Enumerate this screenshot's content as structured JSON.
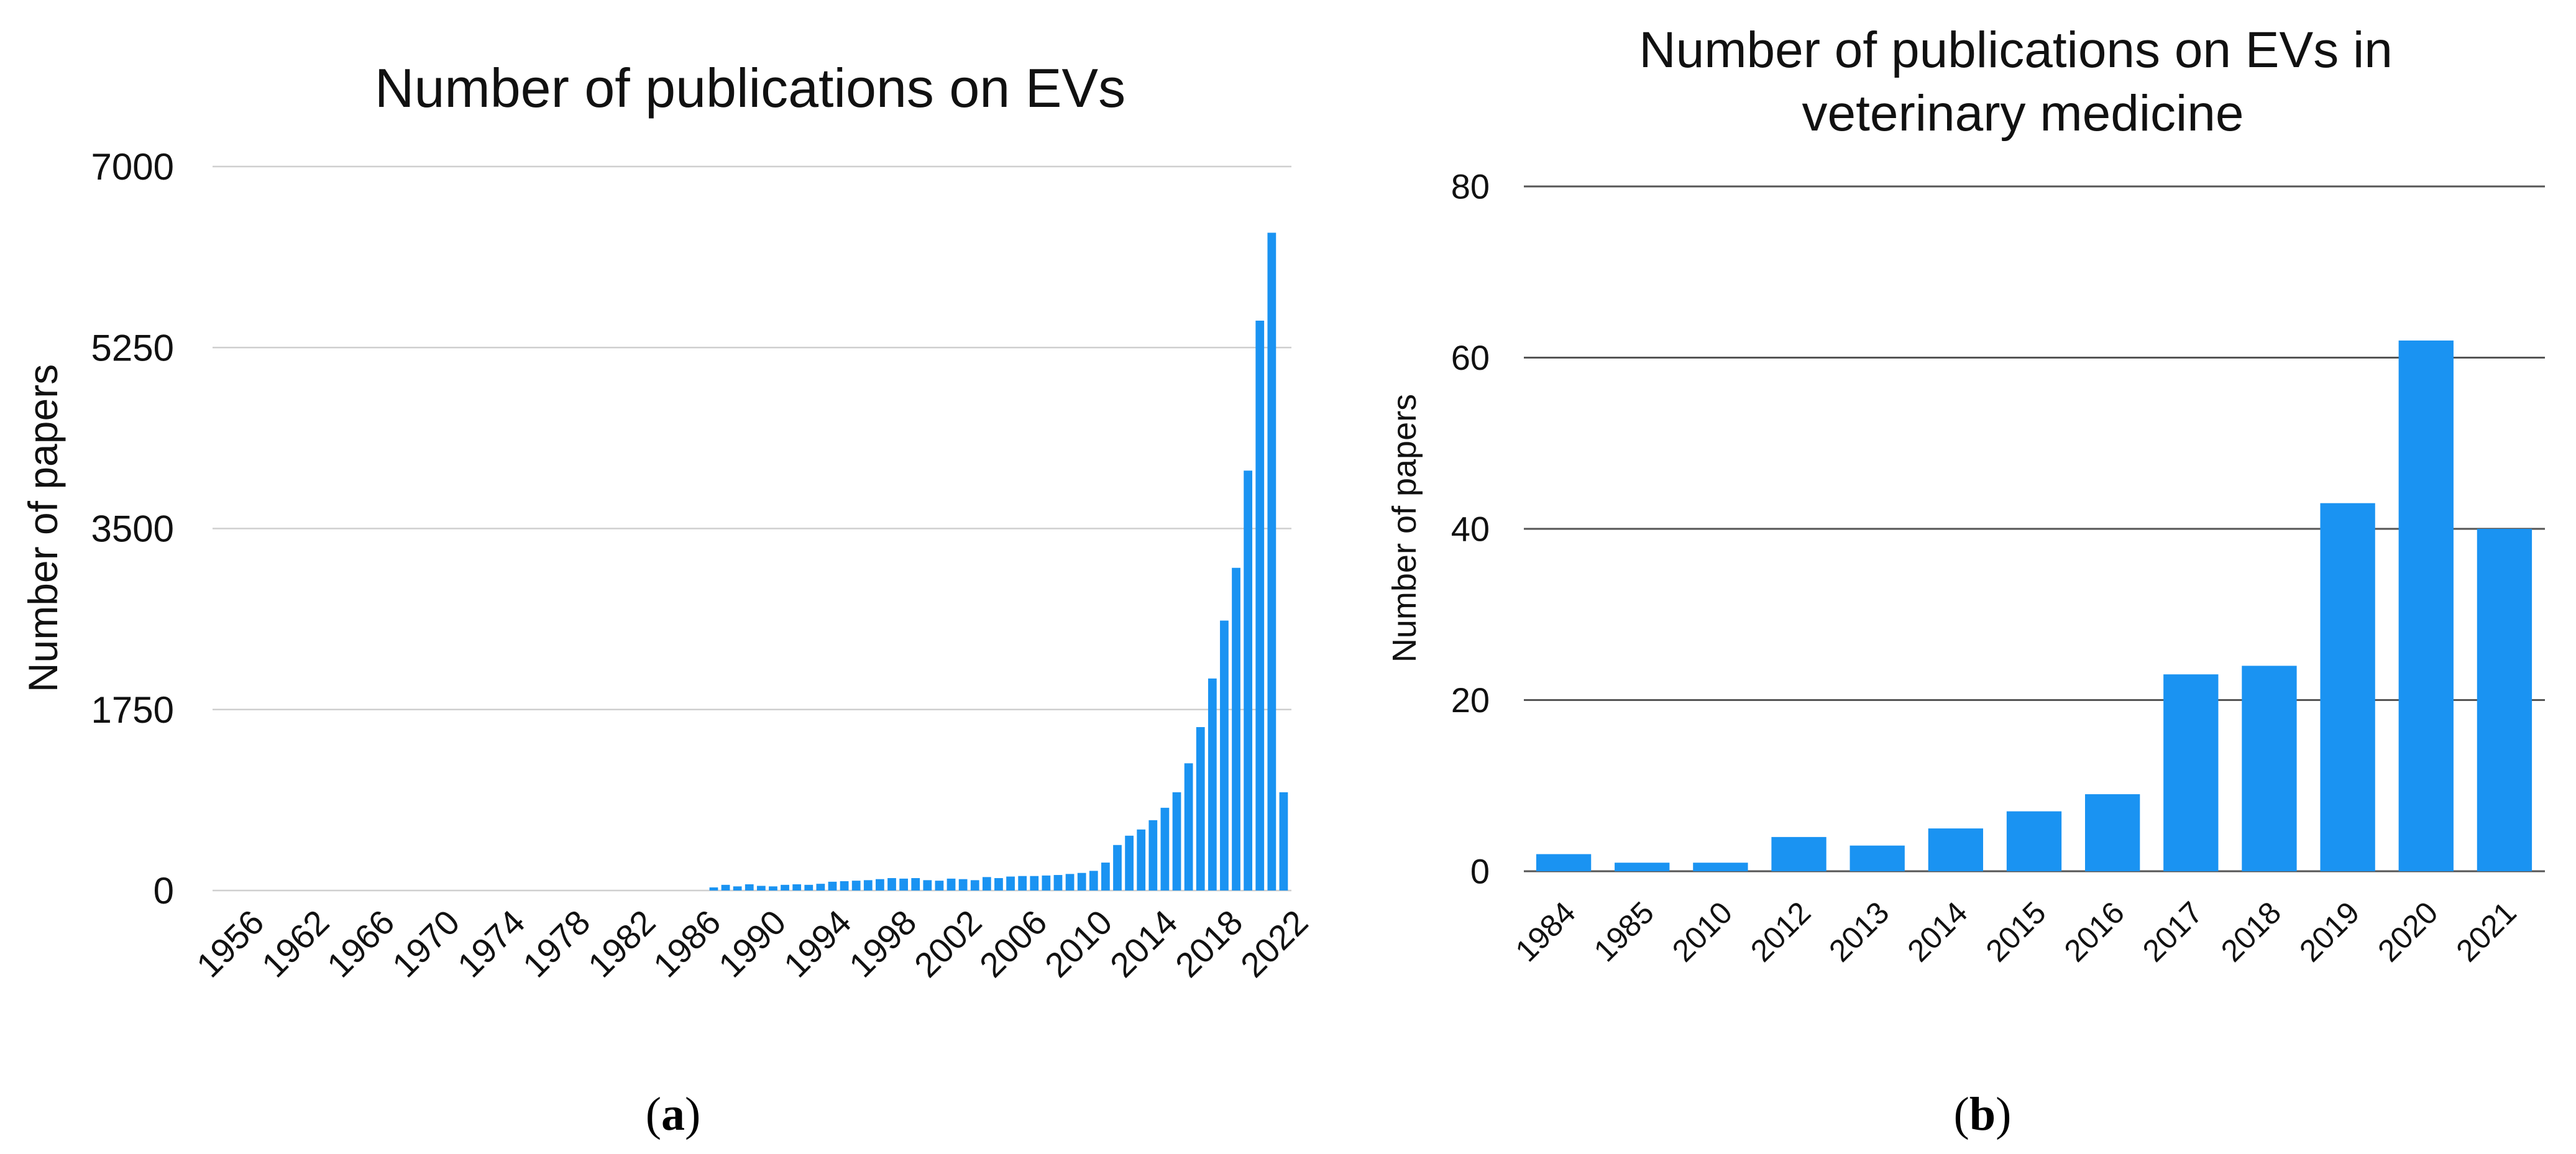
{
  "bar_color": "#1a93f2",
  "grid_color": "#cfcfcf",
  "grid_color_b": "#555555",
  "chart_data": [
    {
      "type": "bar",
      "title": "Number of publications on EVs",
      "xlabel": "",
      "ylabel": "Number of papers",
      "ylim": [
        0,
        7000
      ],
      "yticks": [
        "0",
        "1750",
        "3500",
        "5250",
        "7000"
      ],
      "xtick_labels": [
        "1956",
        "1962",
        "1966",
        "1970",
        "1974",
        "1978",
        "1982",
        "1986",
        "1990",
        "1994",
        "1998",
        "2002",
        "2006",
        "2010",
        "2014",
        "2018",
        "2022"
      ],
      "categories": [
        "1956",
        "1957",
        "1958",
        "1959",
        "1960",
        "1961",
        "1962",
        "1963",
        "1964",
        "1965",
        "1966",
        "1967",
        "1968",
        "1969",
        "1970",
        "1971",
        "1972",
        "1973",
        "1974",
        "1975",
        "1976",
        "1977",
        "1978",
        "1979",
        "1980",
        "1981",
        "1982",
        "1983",
        "1984",
        "1985",
        "1986",
        "1987",
        "1988",
        "1989",
        "1990",
        "1991",
        "1992",
        "1993",
        "1994",
        "1995",
        "1996",
        "1997",
        "1998",
        "1999",
        "2000",
        "2001",
        "2002",
        "2003",
        "2004",
        "2005",
        "2006",
        "2007",
        "2008",
        "2009",
        "2010",
        "2011",
        "2012",
        "2013",
        "2014",
        "2015",
        "2016",
        "2017",
        "2018",
        "2019",
        "2020",
        "2021",
        "2022"
      ],
      "values": [
        0,
        0,
        0,
        0,
        0,
        0,
        0,
        0,
        0,
        0,
        0,
        0,
        0,
        0,
        0,
        0,
        0,
        0,
        30,
        55,
        40,
        60,
        45,
        40,
        55,
        60,
        55,
        65,
        85,
        90,
        95,
        100,
        110,
        120,
        115,
        120,
        100,
        95,
        115,
        110,
        100,
        130,
        120,
        135,
        140,
        140,
        145,
        150,
        160,
        170,
        190,
        270,
        440,
        530,
        590,
        680,
        800,
        950,
        1230,
        1580,
        2050,
        2610,
        3120,
        4060,
        5510,
        6360,
        950
      ],
      "caption": "(a)",
      "caption_letter": "a"
    },
    {
      "type": "bar",
      "title": "Number of publications on EVs in veterinary medicine",
      "title_lines": [
        "Number of publications on EVs in",
        "veterinary medicine"
      ],
      "xlabel": "",
      "ylabel": "Number of papers",
      "ylim": [
        0,
        80
      ],
      "yticks": [
        "0",
        "20",
        "40",
        "60",
        "80"
      ],
      "categories": [
        "1984",
        "1985",
        "2010",
        "2012",
        "2013",
        "2014",
        "2015",
        "2016",
        "2017",
        "2018",
        "2019",
        "2020",
        "2021"
      ],
      "values": [
        2,
        1,
        1,
        4,
        3,
        5,
        7,
        9,
        23,
        24,
        43,
        62,
        40
      ],
      "caption": "(b)",
      "caption_letter": "b"
    }
  ]
}
